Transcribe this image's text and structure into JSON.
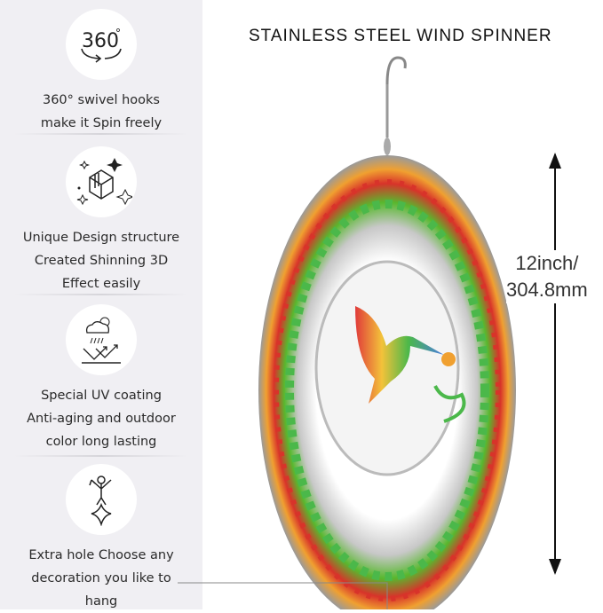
{
  "title": "STAINLESS STEEL WIND SPINNER",
  "dimension": {
    "line1": "12inch/",
    "line2": "304.8mm"
  },
  "features": [
    {
      "icon": "rotate-360-icon",
      "icon_text": "360",
      "lines": [
        "360° swivel hooks",
        "make it Spin freely"
      ]
    },
    {
      "icon": "3d-cube-sparkle-icon",
      "lines": [
        "Unique Design structure",
        "Created Shinning 3D",
        "Effect easily"
      ]
    },
    {
      "icon": "uv-weather-icon",
      "lines": [
        "Special UV coating",
        "Anti-aging and outdoor",
        "color long lasting"
      ]
    },
    {
      "icon": "hanging-decoration-icon",
      "lines": [
        "Extra hole Choose any",
        "decoration you like to",
        "hang"
      ]
    }
  ],
  "colors": {
    "panel": "#f0eff3",
    "accent_red": "#d8332a",
    "accent_green": "#58b82e"
  }
}
